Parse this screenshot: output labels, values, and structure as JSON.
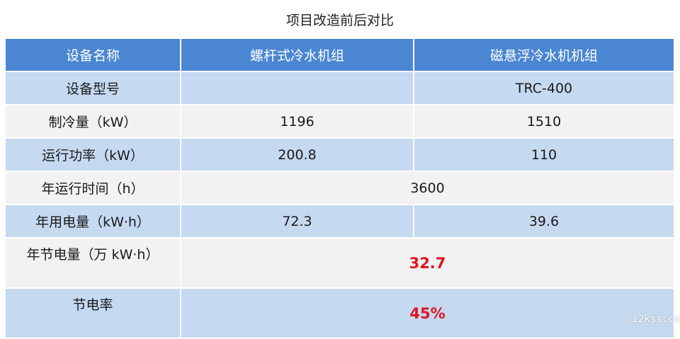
{
  "title": "项目改造前后对比",
  "table": {
    "headers": [
      "设备名称",
      "螺杆式冷水机组",
      "磁悬浮冷水机机组"
    ],
    "rows": [
      {
        "label": "设备型号",
        "screw": "",
        "maglev": "TRC-400"
      },
      {
        "label": "制冷量（kW）",
        "screw": "1196",
        "maglev": "1510"
      },
      {
        "label": "运行功率（kW）",
        "screw": "200.8",
        "maglev": "110"
      },
      {
        "label": "年运行时间（h）",
        "merged": "3600"
      },
      {
        "label": "年用电量（kW·h）",
        "screw": "72.3",
        "maglev": "39.6"
      },
      {
        "label": "年节电量（万 kW·h）",
        "merged": "32.7"
      },
      {
        "label": "节电率",
        "merged": "45%"
      }
    ]
  },
  "colors": {
    "header": "#4a86d2",
    "row_blue": "#c5d9f1",
    "row_gray": "#f2f2f2",
    "highlight": "#e0141e"
  },
  "watermark": "i2kss.co"
}
